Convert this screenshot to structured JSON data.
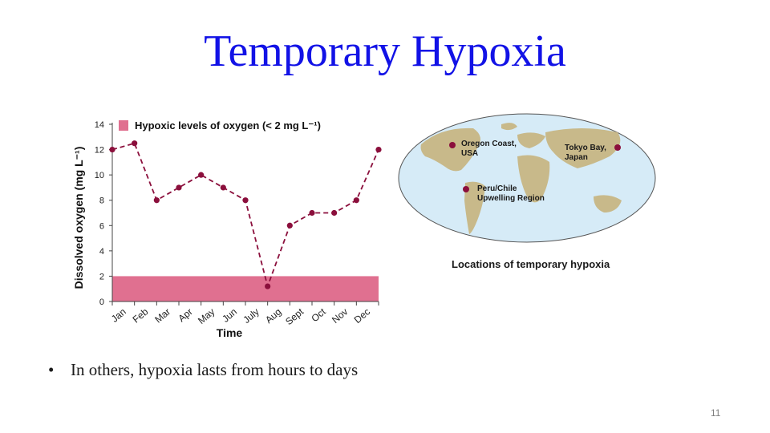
{
  "slide": {
    "title": "Temporary Hypoxia",
    "bullet": "In others, hypoxia lasts from hours to days",
    "bullet_marker": "•",
    "page_number": "11"
  },
  "chart_data": {
    "type": "line",
    "categories": [
      "Jan",
      "Feb",
      "Mar",
      "Apr",
      "May",
      "Jun",
      "July",
      "Aug",
      "Sept",
      "Oct",
      "Nov",
      "Dec"
    ],
    "x": [
      0,
      1,
      2,
      3,
      4,
      5,
      6,
      7,
      8,
      9,
      10,
      11,
      12
    ],
    "values": [
      12,
      12.5,
      8,
      9,
      10,
      9,
      8,
      1.2,
      6,
      7,
      7,
      8,
      12
    ],
    "ylabel": "Dissolved oxygen (mg L⁻¹)",
    "xlabel": "Time",
    "ylim": [
      0,
      14
    ],
    "yticks": [
      "0",
      "2",
      "4",
      "6",
      "8",
      "10",
      "12",
      "14"
    ],
    "threshold_band": {
      "from": 0,
      "to": 2,
      "color": "#e07090"
    },
    "legend": {
      "label": "Hypoxic levels of oxygen (< 2 mg L⁻¹)",
      "placement": "top"
    },
    "line_color": "#8b0f3c",
    "point_color": "#8b0f3c"
  },
  "map": {
    "caption": "Locations of temporary hypoxia",
    "ocean_color": "#d6ebf7",
    "land_color": "#c8b98a",
    "marker_color": "#8b0f3c",
    "labels": {
      "oregon": [
        "Oregon Coast,",
        "USA"
      ],
      "peru": [
        "Peru/Chile",
        "Upwelling Region"
      ],
      "tokyo": [
        "Tokyo Bay,",
        "Japan"
      ]
    }
  }
}
